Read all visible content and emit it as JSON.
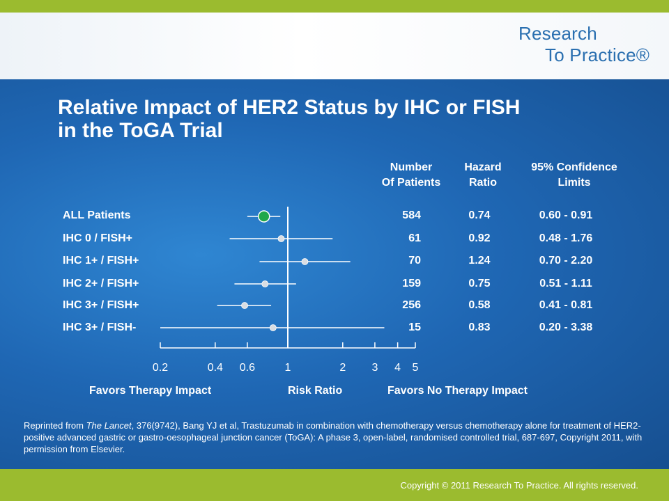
{
  "logo": {
    "line1": "Research",
    "line2": "To Practice®"
  },
  "title": {
    "line1": "Relative Impact of HER2 Status by IHC or FISH",
    "line2": "in the ToGA Trial"
  },
  "columns": {
    "number": [
      "Number",
      "Of Patients"
    ],
    "hazard": [
      "Hazard",
      "Ratio"
    ],
    "ci": [
      "95% Confidence",
      "Limits"
    ]
  },
  "chart_data": {
    "type": "forest",
    "x_scale": "log",
    "xlim": [
      0.2,
      5
    ],
    "reference_line": 1,
    "x_ticks": [
      0.2,
      0.4,
      0.6,
      1,
      2,
      3,
      4,
      5
    ],
    "x_tick_labels": [
      "0.2",
      "0.4",
      "0.6",
      "1",
      "2",
      "3",
      "4",
      "5"
    ],
    "xlabel": "Risk Ratio",
    "left_label": "Favors Therapy Impact",
    "right_label": "Favors No Therapy Impact",
    "rows": [
      {
        "label": "ALL Patients",
        "n": "584",
        "hr": 0.74,
        "hr_text": "0.74",
        "lo": 0.6,
        "hi": 0.91,
        "ci_text": "0.60 - 0.91",
        "highlight": true
      },
      {
        "label": "IHC 0 / FISH+",
        "n": "61",
        "hr": 0.92,
        "hr_text": "0.92",
        "lo": 0.48,
        "hi": 1.76,
        "ci_text": "0.48 - 1.76",
        "highlight": false
      },
      {
        "label": "IHC 1+ / FISH+",
        "n": "70",
        "hr": 1.24,
        "hr_text": "1.24",
        "lo": 0.7,
        "hi": 2.2,
        "ci_text": "0.70 - 2.20",
        "highlight": false
      },
      {
        "label": "IHC 2+ / FISH+",
        "n": "159",
        "hr": 0.75,
        "hr_text": "0.75",
        "lo": 0.51,
        "hi": 1.11,
        "ci_text": "0.51 - 1.11",
        "highlight": false
      },
      {
        "label": "IHC 3+ / FISH+",
        "n": "256",
        "hr": 0.58,
        "hr_text": "0.58",
        "lo": 0.41,
        "hi": 0.81,
        "ci_text": "0.41 - 0.81",
        "highlight": false
      },
      {
        "label": "IHC 3+ / FISH-",
        "n": "15",
        "hr": 0.83,
        "hr_text": "0.83",
        "lo": 0.2,
        "hi": 3.38,
        "ci_text": "0.20 - 3.38",
        "highlight": false
      }
    ],
    "colors": {
      "highlight_marker": "#21a84a",
      "marker": "#d9dde2",
      "line": "#ffffff"
    }
  },
  "citation": {
    "prefix": "Reprinted from ",
    "journal": "The Lancet",
    "rest": ", 376(9742), Bang YJ et al, Trastuzumab in combination with chemotherapy versus chemotherapy alone for treatment of HER2-positive advanced gastric or gastro-oesophageal junction cancer (ToGA): A phase 3, open-label, randomised controlled trial, 687-697, Copyright 2011, with permission from Elsevier."
  },
  "footer": {
    "copyright": "Copyright © 2011 Research To Practice. All rights reserved."
  }
}
